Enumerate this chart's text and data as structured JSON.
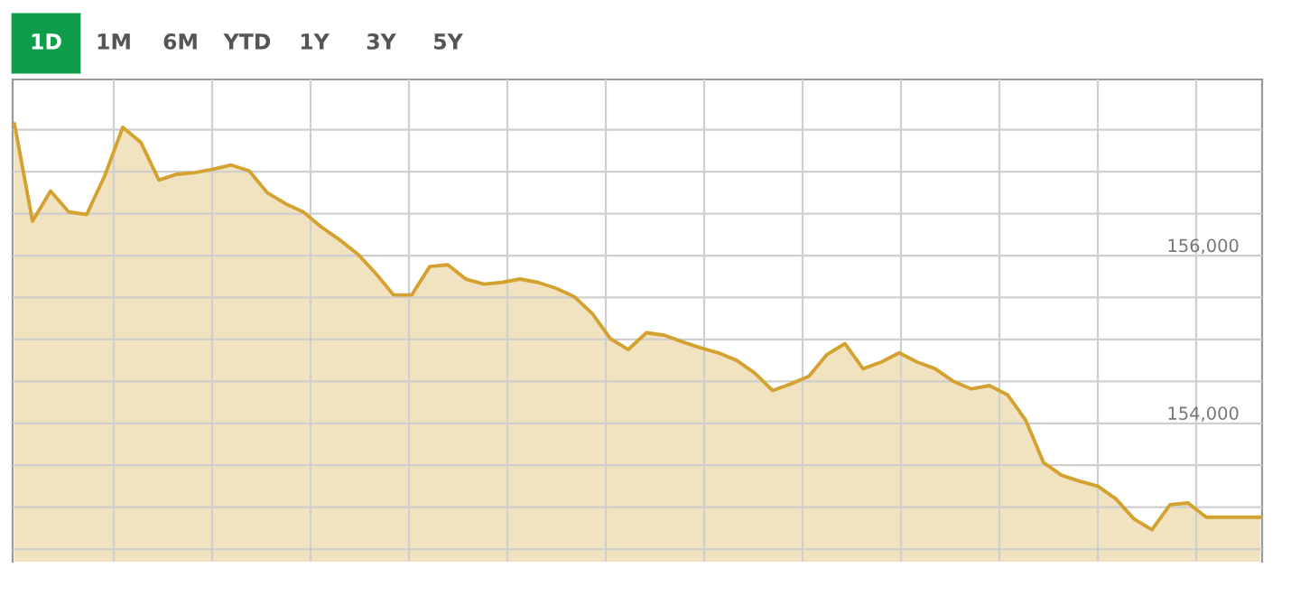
{
  "chart_data": {
    "type": "area",
    "annotations": [
      "1D",
      "1M",
      "6M",
      "YTD",
      "1Y",
      "3Y",
      "5Y"
    ],
    "categories": [
      null,
      null,
      null,
      null,
      null,
      null,
      null,
      null,
      null,
      null,
      null,
      null,
      null,
      null,
      null,
      null,
      null,
      null,
      null,
      null,
      null,
      null,
      null,
      null,
      null,
      null,
      null,
      null,
      null,
      null,
      null,
      null,
      null,
      null,
      null,
      null,
      null,
      null,
      null,
      null,
      null,
      null,
      null,
      null,
      null,
      null,
      null,
      null,
      null,
      null,
      null,
      null,
      null,
      null,
      null,
      null,
      null,
      null,
      null,
      null,
      null,
      null,
      null,
      null,
      null,
      null,
      null,
      null,
      null,
      null
    ],
    "series": [
      {
        "color": "#d4a230",
        "values": [
          157570,
          156410,
          156770,
          156520,
          156490,
          156950,
          157530,
          157350,
          156900,
          156970,
          156990,
          157030,
          157080,
          157010,
          156750,
          156620,
          156520,
          156340,
          156190,
          156020,
          155790,
          155530,
          155530,
          155870,
          155890,
          155720,
          155660,
          155680,
          155720,
          155680,
          155610,
          155510,
          155310,
          155010,
          154880,
          155080,
          155050,
          154970,
          154900,
          154840,
          154750,
          154600,
          154390,
          154470,
          154560,
          154820,
          154950,
          154650,
          154730,
          154840,
          154730,
          154650,
          154500,
          154410,
          154450,
          154340,
          154040,
          153530,
          153380,
          153310,
          153250,
          153100,
          152860,
          152730,
          153030,
          153050,
          152880,
          152880,
          152880,
          152880
        ]
      }
    ],
    "ylim": [
      152350,
      158100
    ],
    "yticks": [
      {
        "value": 152500,
        "label": null
      },
      {
        "value": 153000,
        "label": null
      },
      {
        "value": 153500,
        "label": null
      },
      {
        "value": 154000,
        "label": "154,000"
      },
      {
        "value": 154500,
        "label": null
      },
      {
        "value": 155000,
        "label": null
      },
      {
        "value": 155500,
        "label": null
      },
      {
        "value": 156000,
        "label": "156,000"
      },
      {
        "value": 156500,
        "label": null
      },
      {
        "value": 157000,
        "label": null
      },
      {
        "value": 157500,
        "label": null
      }
    ],
    "grid": true,
    "tick_labels": "y"
  }
}
